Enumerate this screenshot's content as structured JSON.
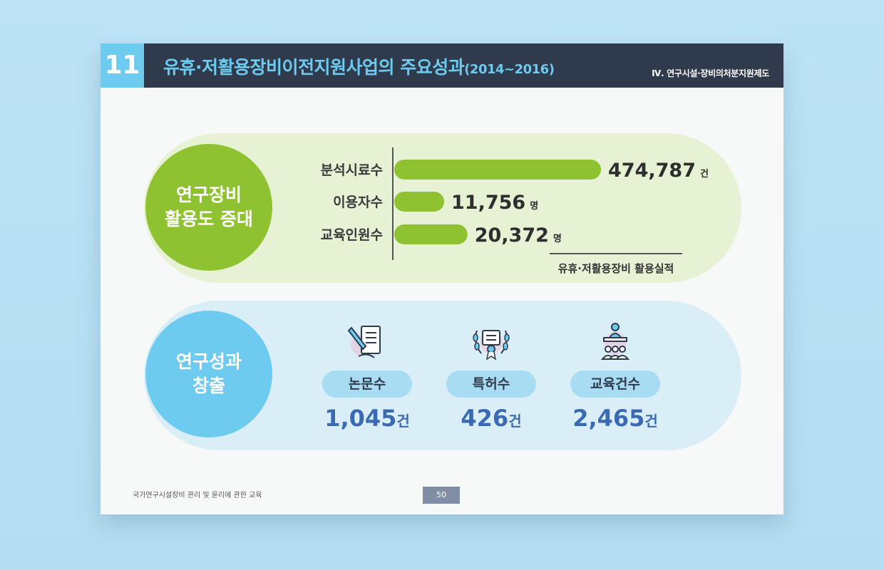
{
  "header": {
    "number": "11",
    "title": "유휴·저활용장비이전지원사업의 주요성과",
    "years": "(2014~2016)",
    "section": "Ⅳ. 연구시설·장비의처분지원제도"
  },
  "utilization": {
    "circle_line1": "연구장비",
    "circle_line2": "활용도 증대",
    "caption": "유휴·저활용장비 활용실적"
  },
  "chart_data": {
    "type": "bar",
    "orientation": "horizontal",
    "categories": [
      "분석시료수",
      "이용자수",
      "교육인원수"
    ],
    "values": [
      474787,
      11756,
      20372
    ],
    "value_labels": [
      "474,787",
      "11,756",
      "20,372"
    ],
    "units": [
      "건",
      "명",
      "명"
    ],
    "title": "유휴·저활용장비 활용실적",
    "xlabel": "",
    "ylabel": "",
    "grid": false,
    "legend": "none",
    "bar_color": "#8fc231"
  },
  "outcomes": {
    "circle_line1": "연구성과",
    "circle_line2": "창출",
    "items": [
      {
        "label": "논문수",
        "value": "1,045",
        "unit": "건",
        "icon": "document-pen-icon"
      },
      {
        "label": "특허수",
        "value": "426",
        "unit": "건",
        "icon": "certificate-laurel-icon"
      },
      {
        "label": "교육건수",
        "value": "2,465",
        "unit": "건",
        "icon": "lecture-icon"
      }
    ]
  },
  "footer": {
    "text": "국가연구시설장비 관리 및 윤리에 관한 교육",
    "page": "50"
  },
  "colors": {
    "header_bg": "#2f3a4c",
    "accent_blue": "#6ccbef",
    "accent_green": "#8fc231",
    "value_blue": "#3b6ab5"
  }
}
